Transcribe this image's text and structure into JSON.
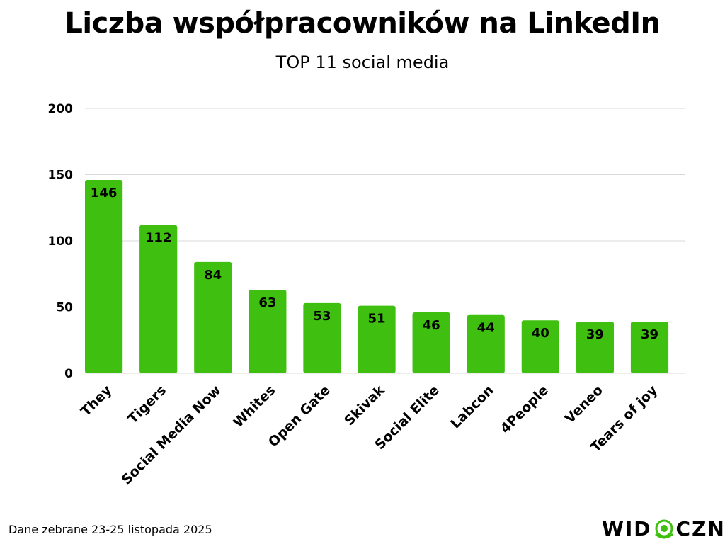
{
  "header": {
    "title": "Liczba współpracowników na LinkedIn",
    "subtitle": "TOP 11 social media"
  },
  "footer": {
    "note": "Dane zebrane 23-25 listopada 2025",
    "logo_left": "WID",
    "logo_right": "CZNI"
  },
  "colors": {
    "bar": "#3fbf0f",
    "grid": "#d9d9d9",
    "text": "#000000",
    "logo_accent": "#3fbf0f"
  },
  "chart_data": {
    "type": "bar",
    "title": "Liczba współpracowników na LinkedIn",
    "subtitle": "TOP 11 social media",
    "categories": [
      "They",
      "Tigers",
      "Social Media Now",
      "Whites",
      "Open Gate",
      "Skivak",
      "Social Elite",
      "Labcon",
      "4People",
      "Veneo",
      "Tears of joy"
    ],
    "values": [
      146,
      112,
      84,
      63,
      53,
      51,
      46,
      44,
      40,
      39,
      39
    ],
    "yticks": [
      0,
      50,
      100,
      150,
      200
    ],
    "ylim": [
      0,
      200
    ],
    "xlabel": "",
    "ylabel": "",
    "grid": true,
    "data_labels": true
  }
}
